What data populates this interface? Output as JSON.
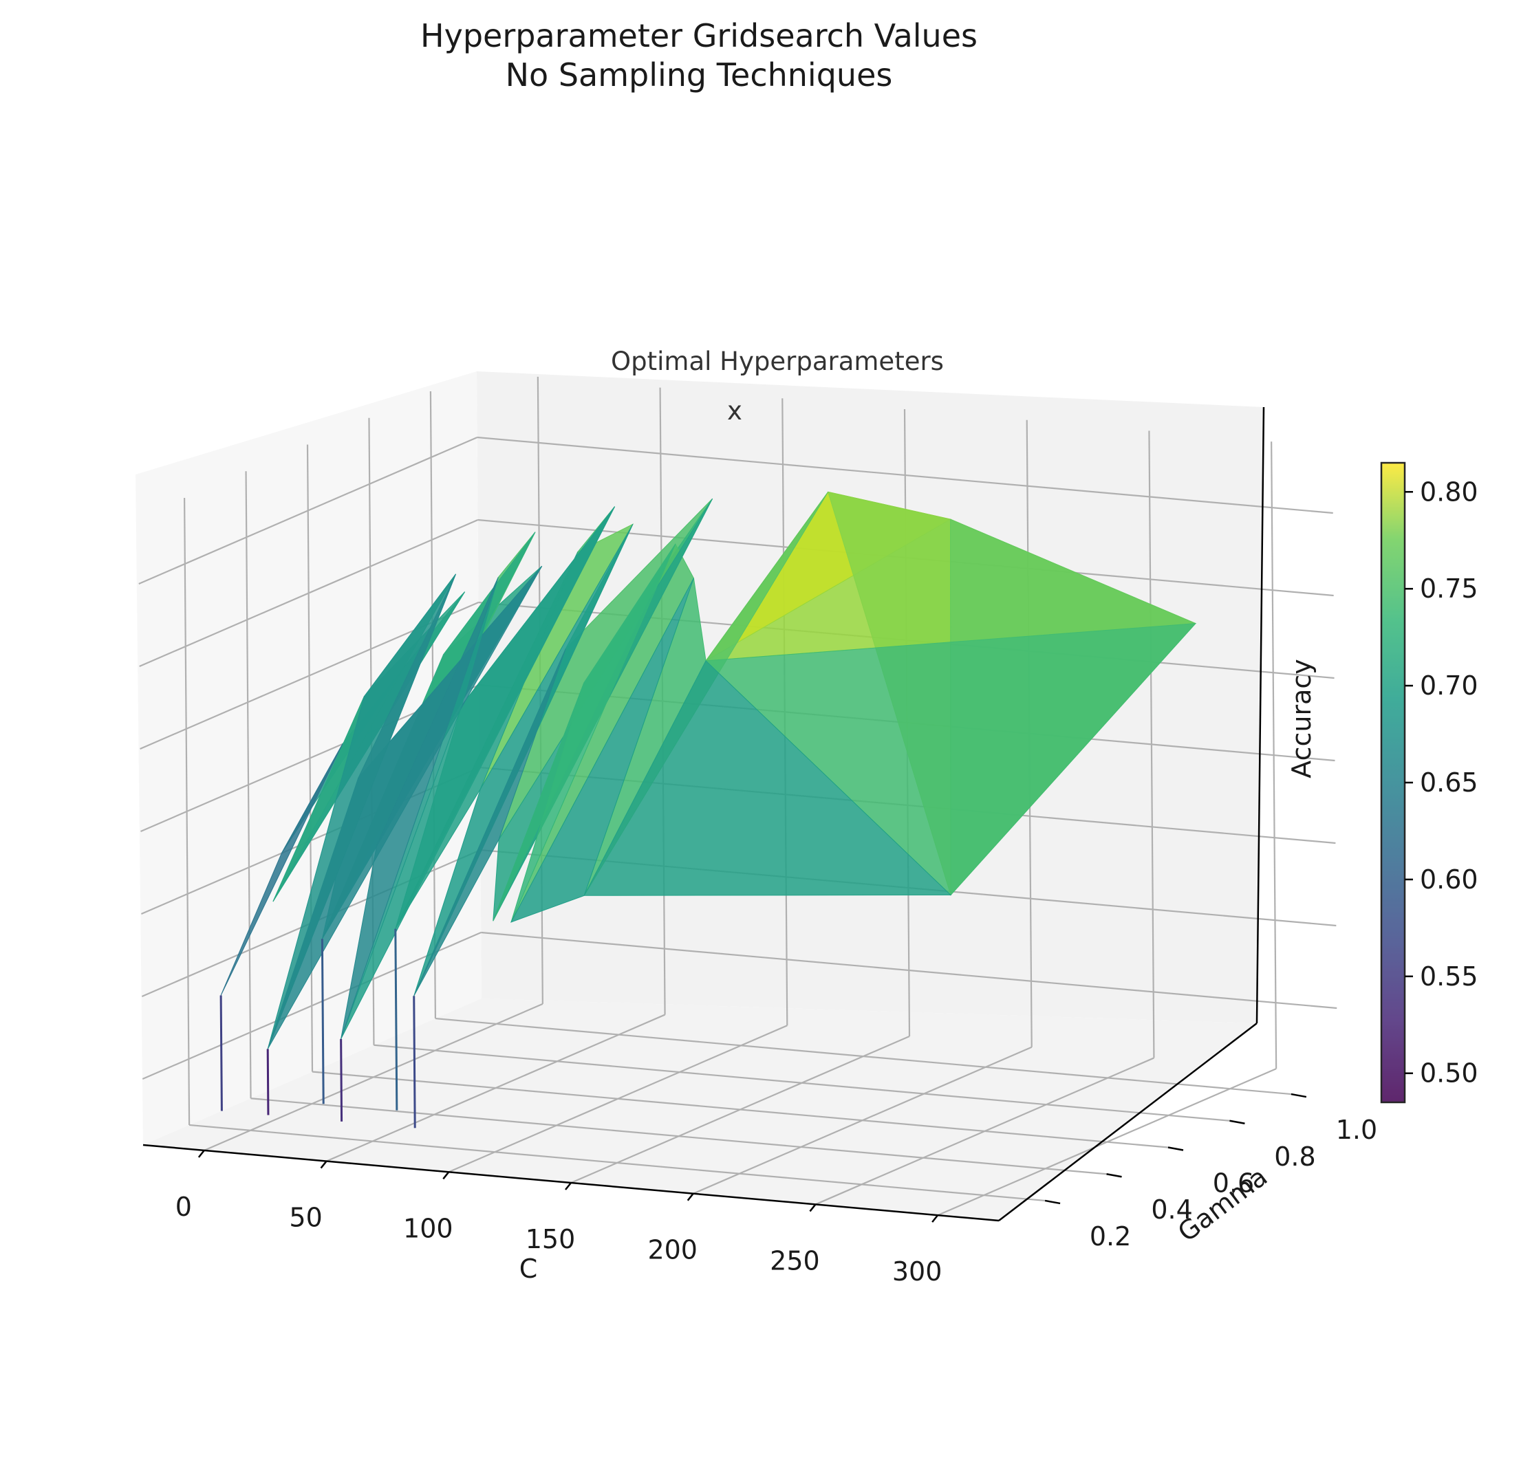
{
  "chart_data": {
    "type": "surface3d",
    "title": [
      "Hyperparameter Gridsearch Values",
      "No Sampling Techniques"
    ],
    "xlabel": "C",
    "ylabel": "Gamma",
    "zlabel": "Accuracy",
    "x_ticks": [
      "0",
      "50",
      "100",
      "150",
      "200",
      "250",
      "300"
    ],
    "y_ticks": [
      "0.2",
      "0.4",
      "0.6",
      "0.8",
      "1.0"
    ],
    "colorbar": {
      "colormap": "viridis",
      "range": [
        0.485,
        0.815
      ],
      "ticks": [
        "0.50",
        "0.55",
        "0.60",
        "0.65",
        "0.70",
        "0.75",
        "0.80"
      ]
    },
    "annotations": [
      {
        "text": "Optimal Hyperparameters"
      },
      {
        "text": "x",
        "C": 150,
        "gamma": 0.9,
        "accuracy": 0.81
      }
    ],
    "points": [
      {
        "C": 1,
        "gamma": 0.1,
        "accuracy": 0.55
      },
      {
        "C": 1,
        "gamma": 0.3,
        "accuracy": 0.62
      },
      {
        "C": 1,
        "gamma": 0.5,
        "accuracy": 0.67
      },
      {
        "C": 1,
        "gamma": 0.7,
        "accuracy": 0.7
      },
      {
        "C": 1,
        "gamma": 0.9,
        "accuracy": 0.73
      },
      {
        "C": 10,
        "gamma": 0.2,
        "accuracy": 0.6
      },
      {
        "C": 10,
        "gamma": 0.5,
        "accuracy": 0.7
      },
      {
        "C": 10,
        "gamma": 0.8,
        "accuracy": 0.75
      },
      {
        "C": 20,
        "gamma": 0.1,
        "accuracy": 0.52
      },
      {
        "C": 20,
        "gamma": 0.4,
        "accuracy": 0.66
      },
      {
        "C": 20,
        "gamma": 1.0,
        "accuracy": 0.74
      },
      {
        "C": 30,
        "gamma": 0.2,
        "accuracy": 0.58
      },
      {
        "C": 30,
        "gamma": 0.6,
        "accuracy": 0.72
      },
      {
        "C": 30,
        "gamma": 0.9,
        "accuracy": 0.77
      },
      {
        "C": 40,
        "gamma": 0.3,
        "accuracy": 0.63
      },
      {
        "C": 40,
        "gamma": 0.7,
        "accuracy": 0.76
      },
      {
        "C": 50,
        "gamma": 0.1,
        "accuracy": 0.53
      },
      {
        "C": 50,
        "gamma": 0.5,
        "accuracy": 0.7
      },
      {
        "C": 50,
        "gamma": 1.0,
        "accuracy": 0.78
      },
      {
        "C": 60,
        "gamma": 0.2,
        "accuracy": 0.59
      },
      {
        "C": 60,
        "gamma": 0.8,
        "accuracy": 0.77
      },
      {
        "C": 70,
        "gamma": 0.4,
        "accuracy": 0.66
      },
      {
        "C": 70,
        "gamma": 0.9,
        "accuracy": 0.78
      },
      {
        "C": 80,
        "gamma": 0.1,
        "accuracy": 0.56
      },
      {
        "C": 80,
        "gamma": 0.6,
        "accuracy": 0.73
      },
      {
        "C": 90,
        "gamma": 0.3,
        "accuracy": 0.64
      },
      {
        "C": 90,
        "gamma": 1.0,
        "accuracy": 0.79
      },
      {
        "C": 100,
        "gamma": 0.2,
        "accuracy": 0.6
      },
      {
        "C": 100,
        "gamma": 0.5,
        "accuracy": 0.72
      },
      {
        "C": 100,
        "gamma": 0.8,
        "accuracy": 0.78
      },
      {
        "C": 120,
        "gamma": 0.1,
        "accuracy": 0.61
      },
      {
        "C": 120,
        "gamma": 0.7,
        "accuracy": 0.77
      },
      {
        "C": 150,
        "gamma": 0.1,
        "accuracy": 0.63
      },
      {
        "C": 150,
        "gamma": 0.5,
        "accuracy": 0.74
      },
      {
        "C": 150,
        "gamma": 0.9,
        "accuracy": 0.81
      },
      {
        "C": 200,
        "gamma": 0.9,
        "accuracy": 0.8
      },
      {
        "C": 300,
        "gamma": 0.9,
        "accuracy": 0.75
      },
      {
        "C": 300,
        "gamma": 0.1,
        "accuracy": 0.65
      }
    ]
  }
}
